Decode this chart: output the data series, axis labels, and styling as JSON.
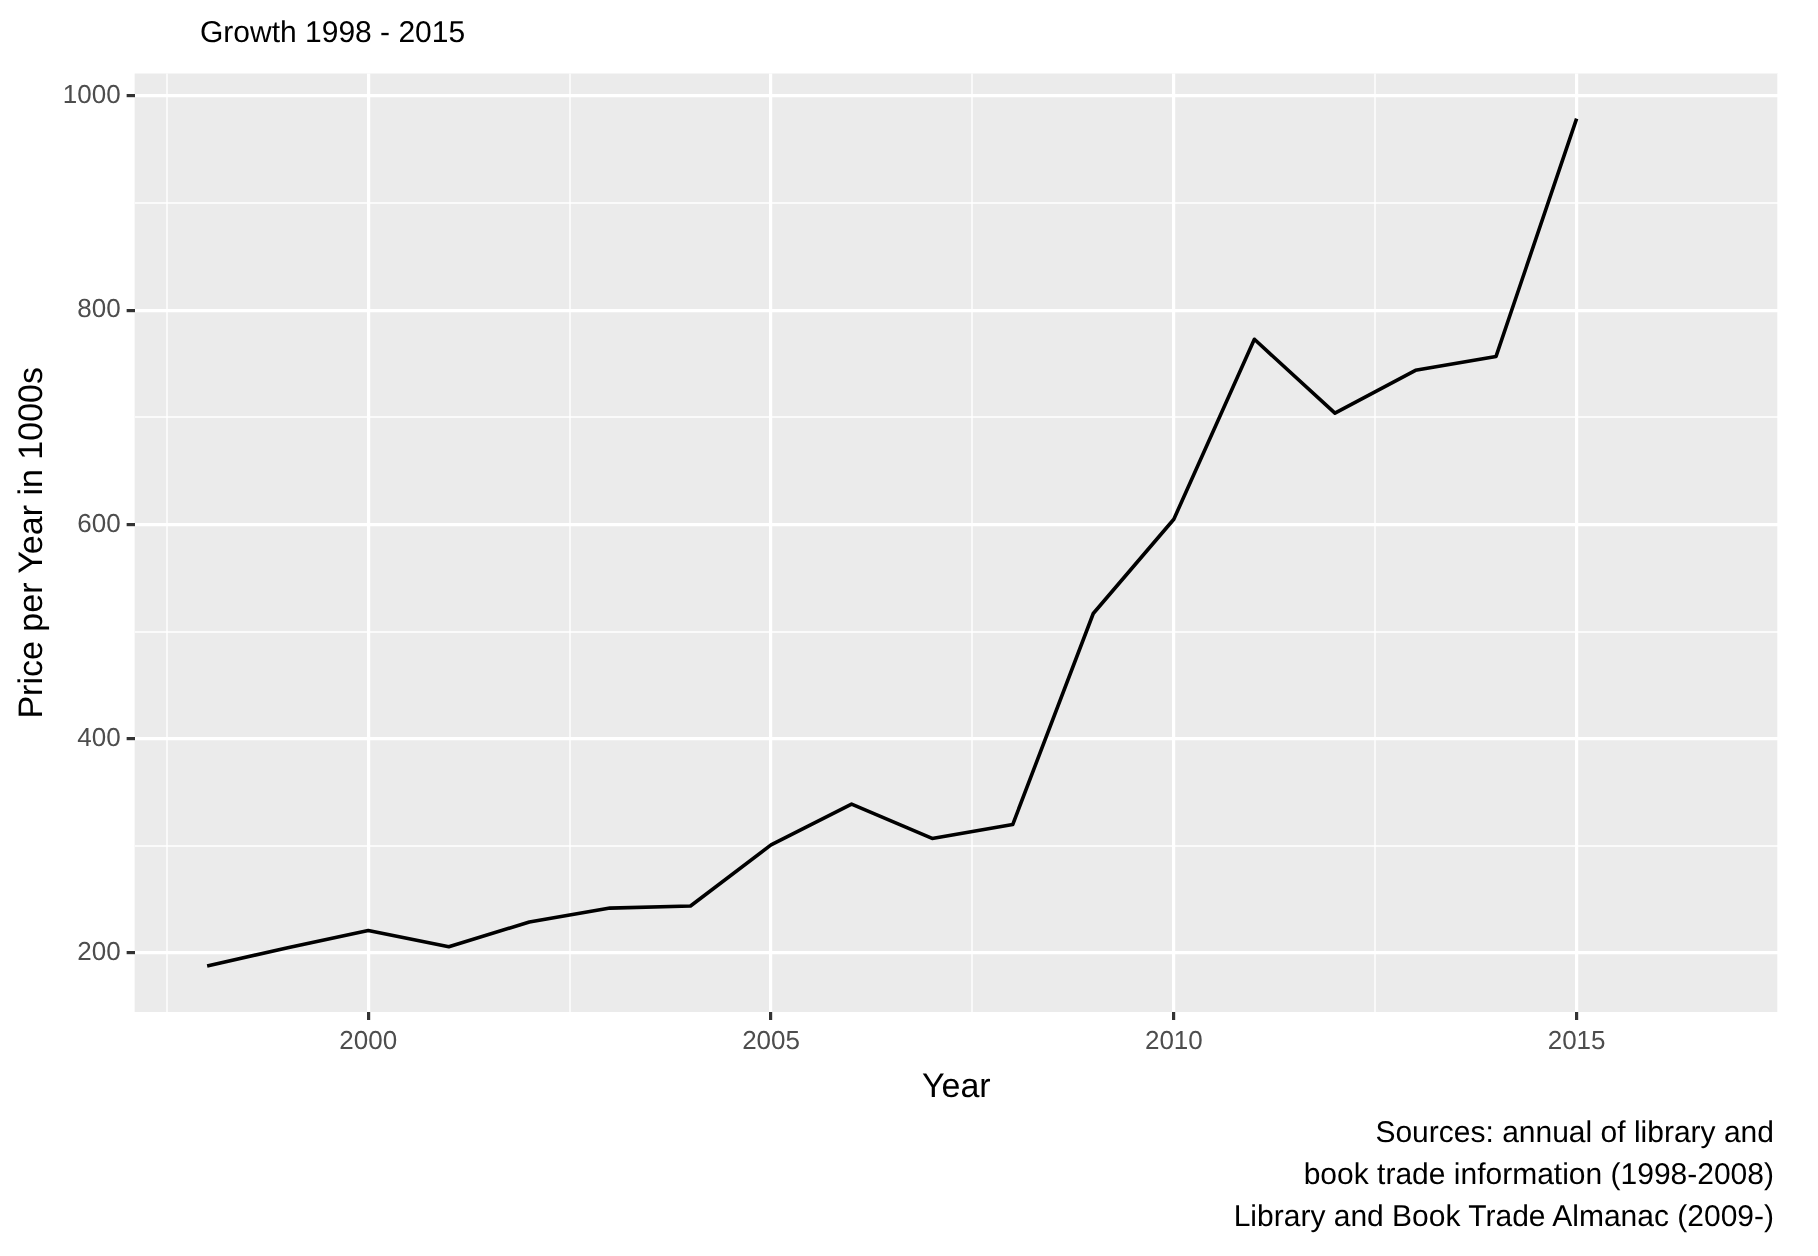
{
  "chart_data": {
    "type": "line",
    "title": "Growth 1998 - 2015",
    "xlabel": "Year",
    "ylabel": "Price per Year in 1000s",
    "x": [
      1998,
      1999,
      2000,
      2001,
      2002,
      2003,
      2004,
      2005,
      2006,
      2007,
      2008,
      2009,
      2010,
      2011,
      2012,
      2013,
      2014,
      2015
    ],
    "series": [
      {
        "color": "#000000",
        "values": [
          188,
          205,
          221,
          206,
          229,
          242,
          244,
          301,
          339,
          307,
          320,
          517,
          605,
          773,
          704,
          744,
          757,
          979
        ]
      }
    ],
    "xlim": [
      1997.1,
      2017.5
    ],
    "xticks": [
      {
        "value": 1997.5,
        "label": null
      },
      2000,
      {
        "value": 2002.5,
        "label": null
      },
      2005,
      {
        "value": 2007.5,
        "label": null
      },
      2010,
      {
        "value": 2012.5,
        "label": null
      },
      2015,
      {
        "value": 2017.5,
        "label": null
      }
    ],
    "ylim": [
      145,
      1021
    ],
    "yticks": [
      200,
      {
        "value": 300,
        "label": null
      },
      400,
      {
        "value": 500,
        "label": null
      },
      600,
      {
        "value": 700,
        "label": null
      },
      800,
      {
        "value": 900,
        "label": null
      },
      1000
    ],
    "grid": true,
    "legend": false,
    "marker": "none",
    "line_style": "solid",
    "annotations": [
      "Sources: annual of library and",
      "book trade information (1998-2008)",
      "Library and Book Trade Almanac (2009-)"
    ]
  }
}
